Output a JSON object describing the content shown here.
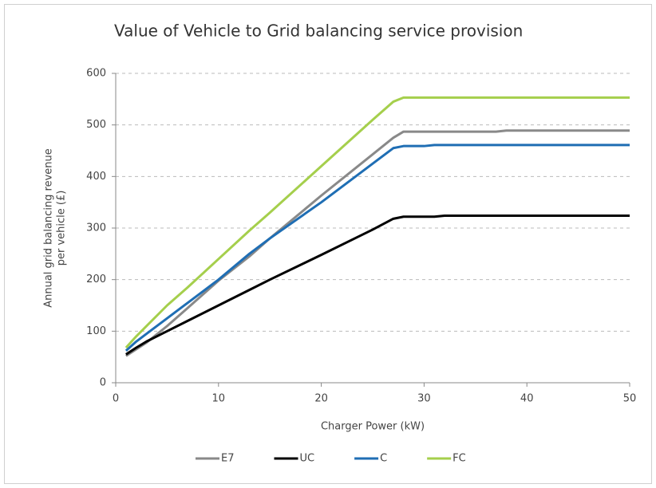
{
  "chart_data": {
    "type": "line",
    "title": "Value of Vehicle to Grid balancing service provision",
    "xlabel": "Charger Power (kW)",
    "ylabel": [
      "Annual grid balancing revenue",
      "per vehicle  (£)"
    ],
    "x": [
      1,
      2,
      3,
      5,
      7,
      10,
      13,
      15,
      20,
      25,
      27,
      28,
      30,
      31,
      32,
      37,
      38,
      50
    ],
    "series": [
      {
        "name": "E7",
        "color": "#898989",
        "values": [
          52,
          65,
          78,
          110,
          145,
          198,
          245,
          280,
          363,
          443,
          475,
          487,
          487,
          487,
          487,
          487,
          489,
          489
        ]
      },
      {
        "name": "UC",
        "color": "#000000",
        "values": [
          55,
          68,
          80,
          100,
          120,
          150,
          180,
          200,
          248,
          297,
          318,
          322,
          322,
          322,
          324,
          324,
          324,
          324
        ]
      },
      {
        "name": "C",
        "color": "#1f6eb4",
        "values": [
          62,
          80,
          95,
          125,
          155,
          200,
          250,
          280,
          350,
          425,
          455,
          459,
          459,
          461,
          461,
          461,
          461,
          461
        ]
      },
      {
        "name": "FC",
        "color": "#a5cf4c",
        "values": [
          68,
          90,
          110,
          150,
          185,
          240,
          295,
          330,
          420,
          510,
          545,
          553,
          553,
          553,
          553,
          553,
          553,
          553
        ]
      }
    ],
    "xlim": [
      0,
      50
    ],
    "xticks": [
      0,
      10,
      20,
      30,
      40,
      50
    ],
    "ylim": [
      0,
      600
    ],
    "yticks": [
      0,
      100,
      200,
      300,
      400,
      500,
      600
    ],
    "grid": true,
    "legend": "bottom"
  }
}
